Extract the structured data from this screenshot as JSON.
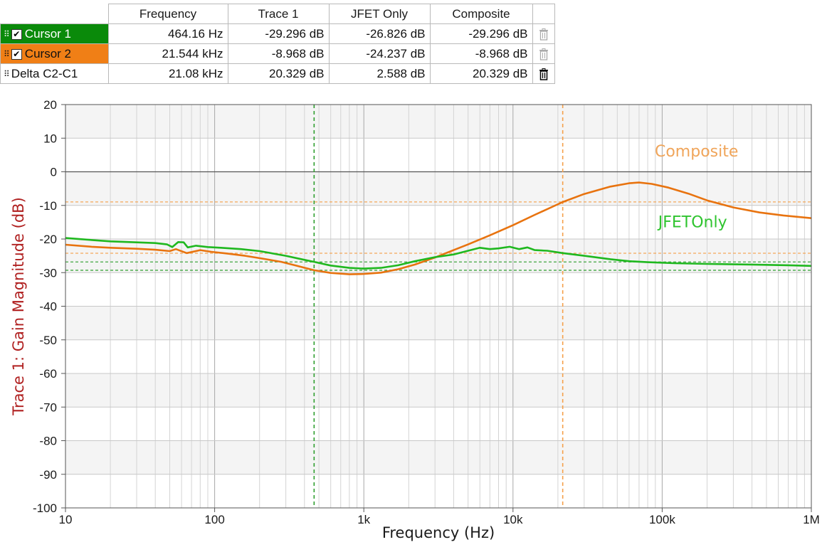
{
  "cursor_table": {
    "headers": [
      "Frequency",
      "Trace 1",
      "JFET Only",
      "Composite"
    ],
    "rows": [
      {
        "name": "Cursor 1",
        "frequency": "464.16 Hz",
        "trace1": "-29.296 dB",
        "jfet": "-26.826 dB",
        "composite": "-29.296 dB",
        "color": "#0a8a0a",
        "checked": true
      },
      {
        "name": "Cursor 2",
        "frequency": "21.544 kHz",
        "trace1": "-8.968 dB",
        "jfet": "-24.237 dB",
        "composite": "-8.968 dB",
        "color": "#f07f16",
        "checked": true
      },
      {
        "name": "Delta C2-C1",
        "frequency": "21.08 kHz",
        "trace1": "20.329 dB",
        "jfet": "2.588 dB",
        "composite": "20.329 dB"
      }
    ]
  },
  "chart_data": {
    "type": "line",
    "xlabel": "Frequency (Hz)",
    "ylabel": "Trace 1: Gain Magnitude (dB)",
    "x_scale": "log",
    "xlim": [
      10,
      1000000
    ],
    "ylim": [
      -100,
      20
    ],
    "x_tick_labels": [
      "10",
      "100",
      "1k",
      "10k",
      "100k",
      "1M"
    ],
    "x_ticks": [
      10,
      100,
      1000,
      10000,
      100000,
      1000000
    ],
    "y_ticks": [
      20,
      10,
      0,
      -10,
      -20,
      -30,
      -40,
      -50,
      -60,
      -70,
      -80,
      -90,
      -100
    ],
    "grid": true,
    "series": [
      {
        "name": "Composite",
        "color": "#e8730f",
        "label_color": "#f0a55a",
        "points": [
          [
            10,
            -21.7
          ],
          [
            15,
            -22.3
          ],
          [
            20,
            -22.6
          ],
          [
            30,
            -22.9
          ],
          [
            40,
            -23.2
          ],
          [
            50,
            -23.6
          ],
          [
            55,
            -23.0
          ],
          [
            65,
            -24.2
          ],
          [
            80,
            -23.3
          ],
          [
            95,
            -23.8
          ],
          [
            120,
            -24.3
          ],
          [
            160,
            -25.0
          ],
          [
            200,
            -25.7
          ],
          [
            280,
            -26.8
          ],
          [
            350,
            -27.9
          ],
          [
            464,
            -29.3
          ],
          [
            600,
            -30.1
          ],
          [
            800,
            -30.5
          ],
          [
            1000,
            -30.4
          ],
          [
            1300,
            -30.0
          ],
          [
            1700,
            -29.0
          ],
          [
            2200,
            -27.6
          ],
          [
            3000,
            -25.5
          ],
          [
            4000,
            -23.3
          ],
          [
            5000,
            -21.6
          ],
          [
            7000,
            -18.9
          ],
          [
            10000,
            -15.9
          ],
          [
            14000,
            -12.8
          ],
          [
            21544,
            -9.0
          ],
          [
            30000,
            -6.6
          ],
          [
            45000,
            -4.4
          ],
          [
            60000,
            -3.4
          ],
          [
            70000,
            -3.2
          ],
          [
            85000,
            -3.6
          ],
          [
            110000,
            -4.7
          ],
          [
            150000,
            -6.5
          ],
          [
            200000,
            -8.5
          ],
          [
            300000,
            -10.6
          ],
          [
            450000,
            -12.1
          ],
          [
            650000,
            -13.0
          ],
          [
            1000000,
            -13.8
          ]
        ]
      },
      {
        "name": "JFETOnly",
        "color": "#1fb81f",
        "label_color": "#2fc42f",
        "points": [
          [
            10,
            -19.7
          ],
          [
            15,
            -20.3
          ],
          [
            20,
            -20.7
          ],
          [
            30,
            -21.0
          ],
          [
            40,
            -21.2
          ],
          [
            48,
            -21.6
          ],
          [
            52,
            -22.4
          ],
          [
            57,
            -20.9
          ],
          [
            62,
            -21.0
          ],
          [
            66,
            -22.5
          ],
          [
            75,
            -22.0
          ],
          [
            90,
            -22.4
          ],
          [
            110,
            -22.6
          ],
          [
            150,
            -23.0
          ],
          [
            200,
            -23.6
          ],
          [
            300,
            -25.0
          ],
          [
            400,
            -26.2
          ],
          [
            464,
            -26.8
          ],
          [
            600,
            -27.9
          ],
          [
            800,
            -28.6
          ],
          [
            1000,
            -28.8
          ],
          [
            1300,
            -28.6
          ],
          [
            1700,
            -27.8
          ],
          [
            2200,
            -26.6
          ],
          [
            3000,
            -25.4
          ],
          [
            4000,
            -24.6
          ],
          [
            5000,
            -23.5
          ],
          [
            6000,
            -22.6
          ],
          [
            7000,
            -23.0
          ],
          [
            8000,
            -22.8
          ],
          [
            9500,
            -22.3
          ],
          [
            11000,
            -23.0
          ],
          [
            12500,
            -22.5
          ],
          [
            14000,
            -23.3
          ],
          [
            17000,
            -23.5
          ],
          [
            21544,
            -24.2
          ],
          [
            30000,
            -25.0
          ],
          [
            45000,
            -26.0
          ],
          [
            60000,
            -26.6
          ],
          [
            80000,
            -26.9
          ],
          [
            120000,
            -27.2
          ],
          [
            200000,
            -27.4
          ],
          [
            400000,
            -27.6
          ],
          [
            700000,
            -27.8
          ],
          [
            1000000,
            -28.0
          ]
        ]
      }
    ],
    "cursors": [
      {
        "name": "Cursor 1",
        "x": 464.16,
        "y_values": [
          -26.826,
          -29.296
        ],
        "color": "#2e9e2e"
      },
      {
        "name": "Cursor 2",
        "x": 21544,
        "y_values": [
          -8.968,
          -24.237
        ],
        "color": "#f5a04a"
      }
    ]
  }
}
